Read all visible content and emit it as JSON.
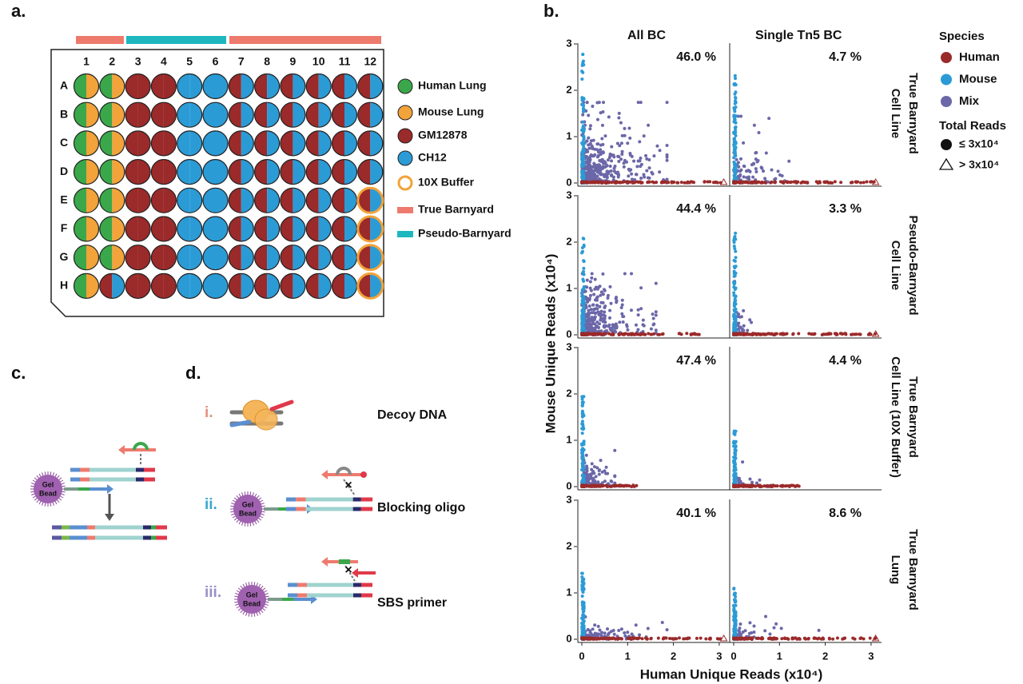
{
  "panel_a": {
    "label": "a.",
    "columns": [
      "1",
      "2",
      "3",
      "4",
      "5",
      "6",
      "7",
      "8",
      "9",
      "10",
      "11",
      "12"
    ],
    "rows": [
      "A",
      "B",
      "C",
      "D",
      "E",
      "F",
      "G",
      "H"
    ],
    "legend": [
      "Human Lung",
      "Mouse Lung",
      "GM12878",
      "CH12",
      "10X Buffer",
      "True Barnyard",
      "Pseudo-Barnyard"
    ]
  },
  "panel_b": {
    "label": "b.",
    "column_titles": [
      "All BC",
      "Single Tn5 BC"
    ],
    "row_titles": [
      [
        "Cell Line",
        "True Barnyard"
      ],
      [
        "Cell Line",
        "Pseudo-Barnyard"
      ],
      [
        "Cell Line (10X Buffer)",
        "True Barnyard"
      ],
      [
        "Lung",
        "True Barnyard"
      ]
    ],
    "percentages": [
      [
        "46.0 %",
        "4.7 %"
      ],
      [
        "44.4 %",
        "3.3 %"
      ],
      [
        "47.4 %",
        "4.4 %"
      ],
      [
        "40.1 %",
        "8.6 %"
      ]
    ],
    "xticks": [
      0,
      1,
      2,
      3
    ],
    "yticks": [
      0,
      1,
      2,
      3
    ],
    "x_axis_label": "Human Unique Reads (x10⁴)",
    "y_axis_label": "Mouse Unique Reads (x10⁴)",
    "legend": {
      "species_title": "Species",
      "species": [
        "Human",
        "Mouse",
        "Mix"
      ],
      "reads_title": "Total Reads",
      "reads": [
        "≤ 3x10⁴",
        "> 3x10⁴"
      ]
    }
  },
  "panel_c": {
    "label": "c.",
    "bead": [
      "Gel",
      "Bead"
    ]
  },
  "panel_d": {
    "label": "d.",
    "steps": [
      {
        "numeral": "i.",
        "text": "Decoy DNA"
      },
      {
        "numeral": "ii.",
        "text": "Blocking oligo"
      },
      {
        "numeral": "iii.",
        "text": "SBS primer"
      }
    ]
  }
}
